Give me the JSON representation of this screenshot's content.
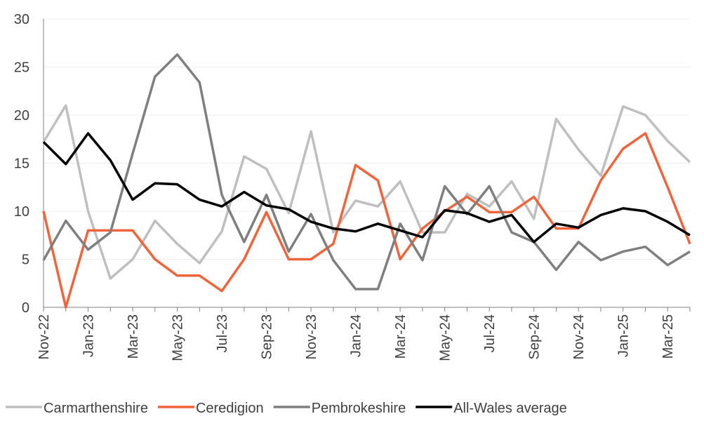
{
  "chart_data": {
    "type": "line",
    "categories": [
      "Nov-22",
      null,
      "Jan-23",
      null,
      "Mar-23",
      null,
      "May-23",
      null,
      "Jul-23",
      null,
      "Sep-23",
      null,
      "Nov-23",
      null,
      "Jan-24",
      null,
      "Mar-24",
      null,
      "May-24",
      null,
      "Jul-24",
      null,
      "Sep-24",
      null,
      "Nov-24",
      null,
      "Jan-25",
      null,
      "Mar-25",
      null
    ],
    "series": [
      {
        "name": "Carmarthenshire",
        "color": "#bfbfbf",
        "values": [
          17.2,
          21,
          10,
          3,
          5,
          9,
          6.6,
          4.6,
          7.9,
          15.7,
          14.4,
          9.8,
          18.3,
          7.8,
          11.1,
          10.5,
          13.1,
          7.8,
          7.8,
          11.8,
          10.5,
          13.1,
          9.2,
          19.6,
          16.4,
          13.7,
          20.9,
          20,
          17.3,
          15.1
        ]
      },
      {
        "name": "Ceredigion",
        "color": "#f0643c",
        "values": [
          10,
          0,
          8,
          8,
          8,
          5,
          3.3,
          3.3,
          1.7,
          5,
          9.9,
          5,
          5,
          6.6,
          14.8,
          13.2,
          5,
          8.2,
          10,
          11.5,
          9.9,
          9.9,
          11.5,
          8.2,
          8.2,
          13.2,
          16.5,
          18.1,
          12.5,
          6.6
        ]
      },
      {
        "name": "Pembrokeshire",
        "color": "#7f7f7f",
        "values": [
          4.9,
          9,
          6,
          7.8,
          16,
          24,
          26.3,
          23.4,
          11.7,
          6.8,
          11.7,
          5.8,
          9.7,
          4.9,
          1.9,
          1.9,
          8.7,
          4.9,
          12.6,
          9.7,
          12.6,
          7.8,
          6.8,
          3.9,
          6.8,
          4.9,
          5.8,
          6.3,
          4.4,
          5.8
        ]
      },
      {
        "name": "All-Wales average",
        "color": "#000000",
        "values": [
          17.2,
          14.9,
          18.1,
          15.3,
          11.2,
          12.9,
          12.8,
          11.2,
          10.5,
          12,
          10.6,
          10.2,
          8.9,
          8.2,
          7.9,
          8.7,
          8,
          7.3,
          10.1,
          9.8,
          8.9,
          9.6,
          6.8,
          8.7,
          8.3,
          9.6,
          10.3,
          10,
          8.9,
          7.5
        ]
      }
    ],
    "ylim": [
      0,
      30
    ],
    "yticks": [
      0,
      5,
      10,
      15,
      20,
      25,
      30
    ],
    "grid": true,
    "legend": "bottom"
  }
}
